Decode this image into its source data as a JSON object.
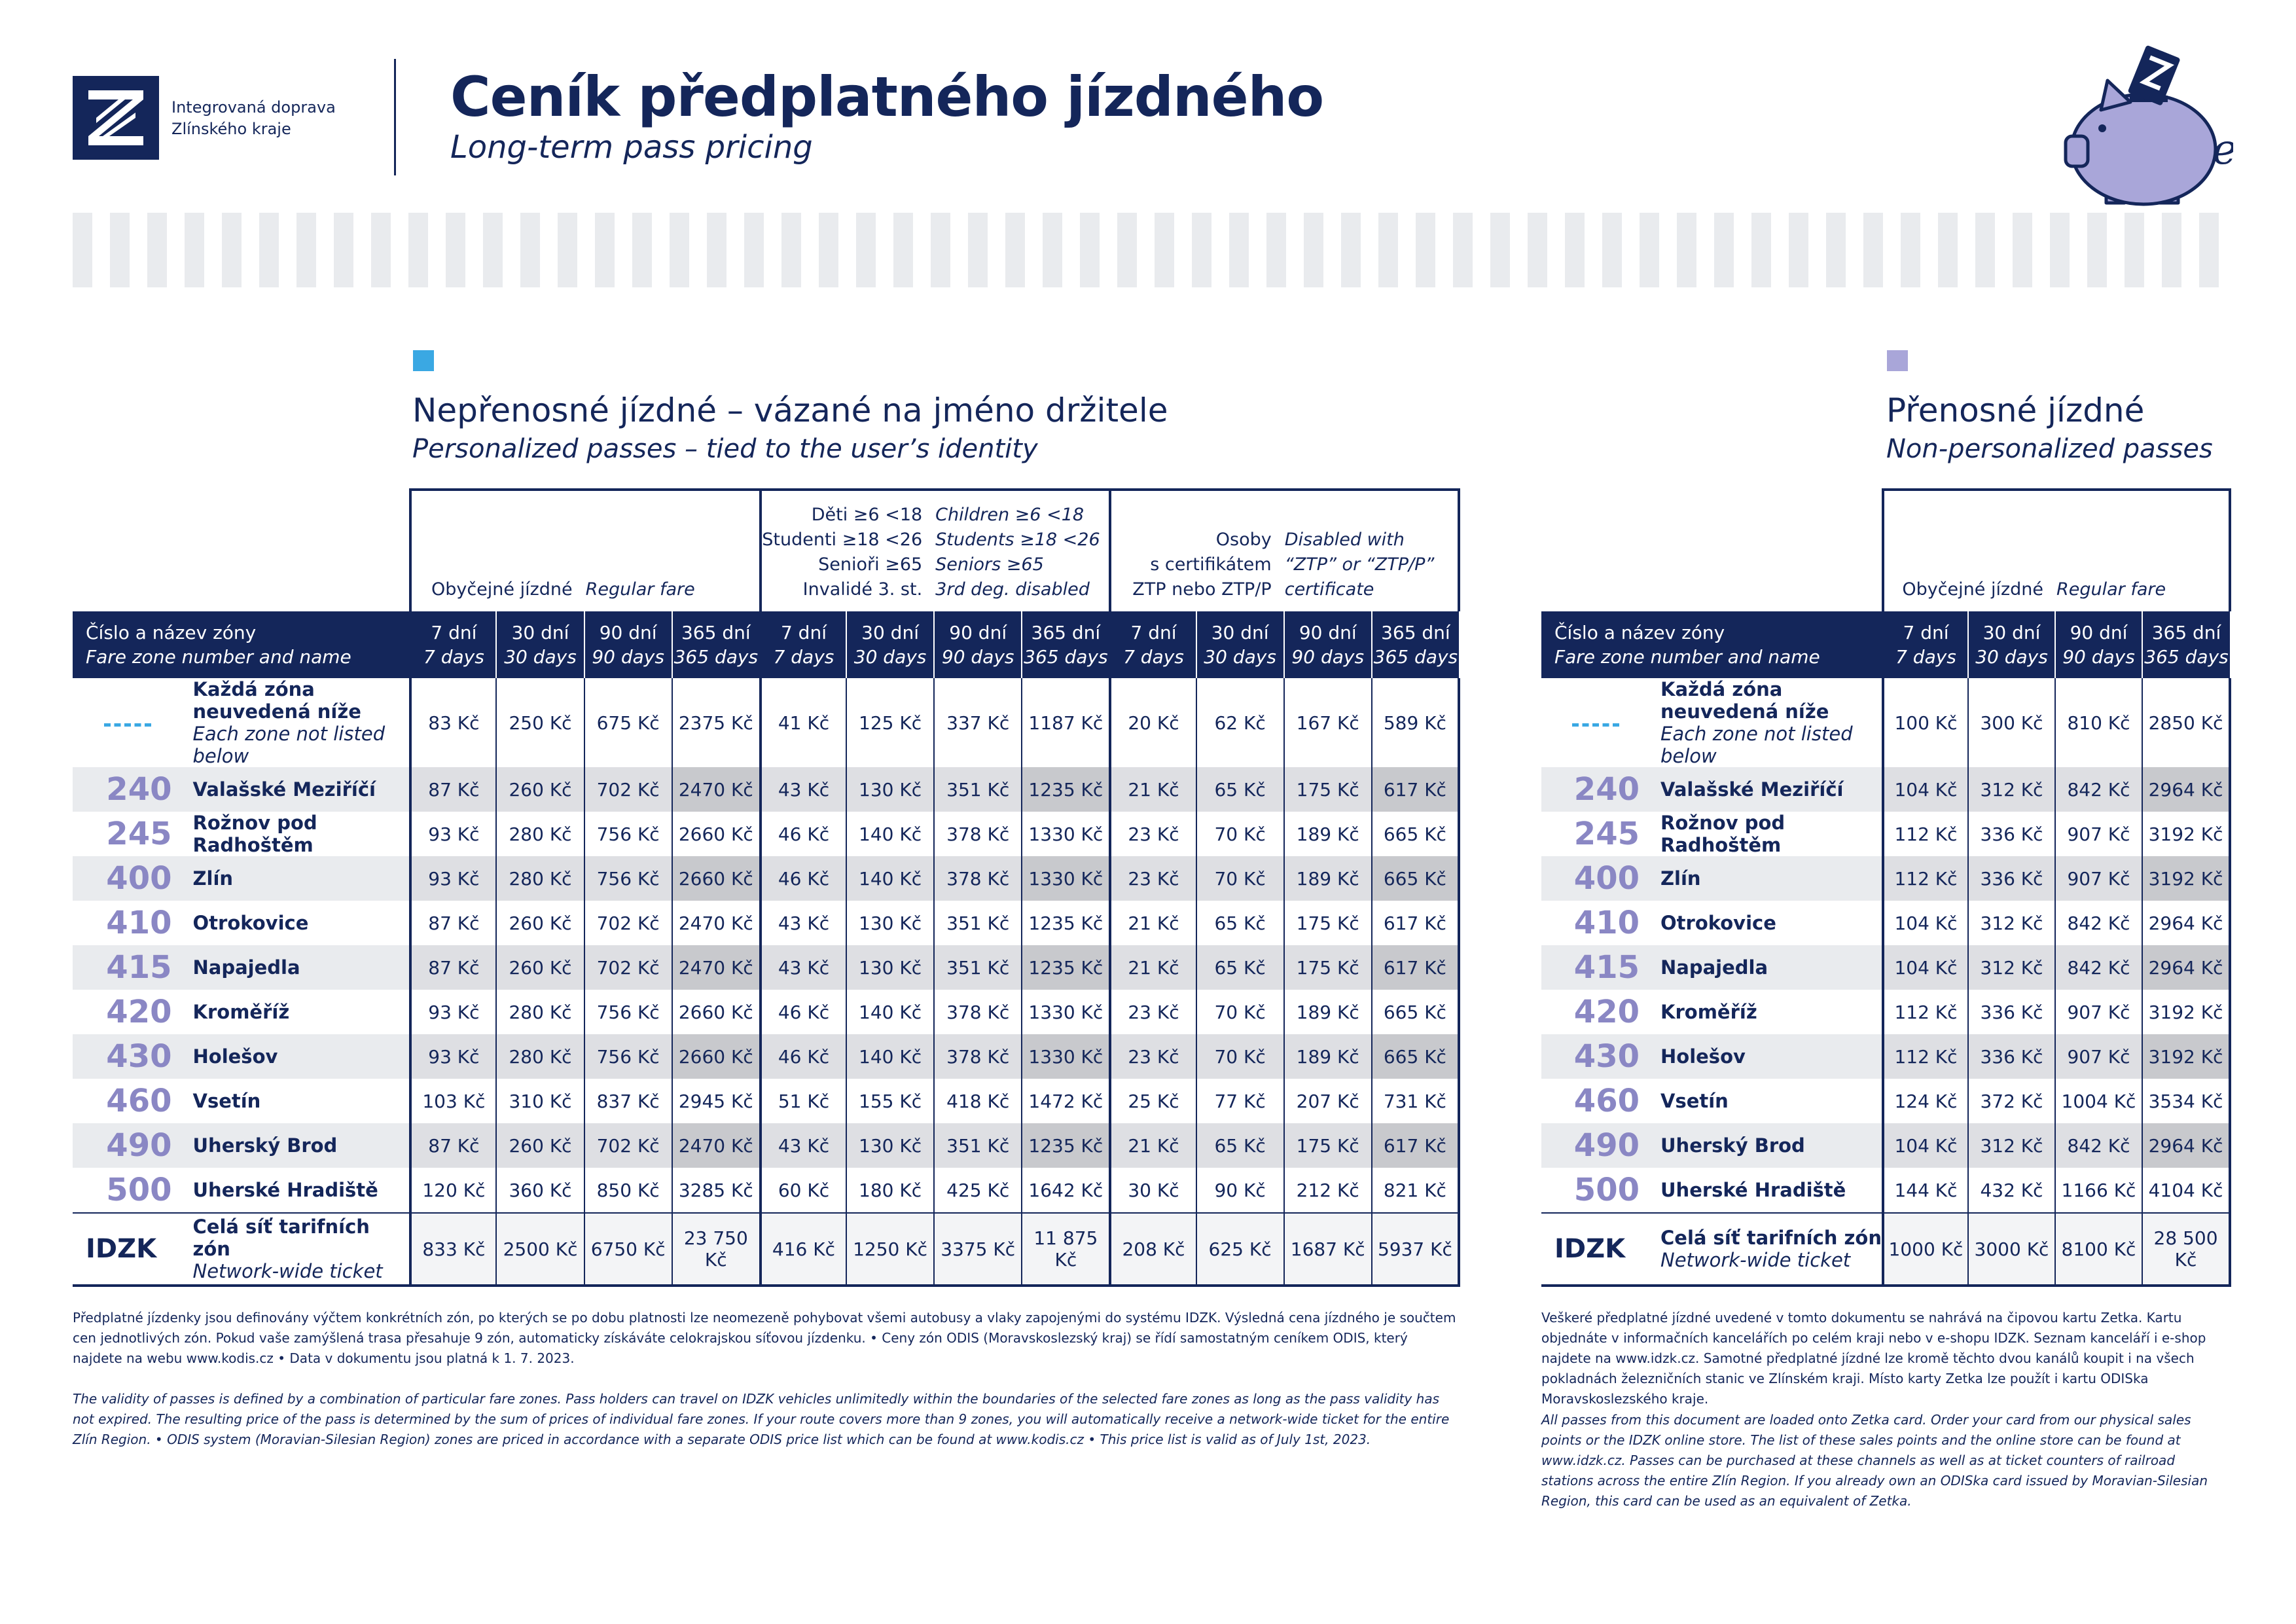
{
  "header": {
    "org_line1": "Integrovaná doprava",
    "org_line2": "Zlínského kraje",
    "title": "Ceník předplatného jízdného",
    "subtitle": "Long-term pass pricing",
    "logo_icon": "idzk-logo-icon",
    "mascot_icon": "piggy-bank-icon",
    "mascot_letter": "e"
  },
  "colors": {
    "navy": "#14265a",
    "blue_marker": "#3aa8e3",
    "violet_marker": "#a9a6d9",
    "zone_number": "#8a87c4"
  },
  "personal": {
    "title": "Nepřenosné jízdné – vázané na jméno držitele",
    "subtitle": "Personalized passes – tied to the user’s identity",
    "groups": [
      {
        "cz": [
          "Obyčejné jízdné"
        ],
        "en": [
          "Regular fare"
        ]
      },
      {
        "cz": [
          "Děti ≥6 <18",
          "Studenti ≥18 <26",
          "Senioři ≥65",
          "Invalidé 3. st."
        ],
        "en": [
          "Children ≥6 <18",
          "Students ≥18 <26",
          "Seniors ≥65",
          "3rd deg. disabled"
        ]
      },
      {
        "cz": [
          "Osoby",
          "s certifikátem",
          "ZTP nebo ZTP/P"
        ],
        "en": [
          "Disabled with",
          "“ZTP” or “ZTP/P”",
          "certificate"
        ]
      }
    ],
    "zone_header_cz": "Číslo a název zóny",
    "zone_header_en": "Fare zone number and name",
    "periods": [
      {
        "cz": "7 dní",
        "en": "7 days"
      },
      {
        "cz": "30 dní",
        "en": "30 days"
      },
      {
        "cz": "90 dní",
        "en": "90 days"
      },
      {
        "cz": "365 dní",
        "en": "365 days"
      }
    ],
    "rows": [
      {
        "num": "",
        "name": "Každá zóna neuvedená níže",
        "name_en": "Each zone not listed below",
        "prices": [
          "83 Kč",
          "250 Kč",
          "675 Kč",
          "2375 Kč",
          "41 Kč",
          "125 Kč",
          "337 Kč",
          "1187 Kč",
          "20 Kč",
          "62 Kč",
          "167 Kč",
          "589 Kč"
        ]
      },
      {
        "num": "240",
        "name": "Valašské Meziříčí",
        "prices": [
          "87 Kč",
          "260 Kč",
          "702 Kč",
          "2470 Kč",
          "43 Kč",
          "130 Kč",
          "351 Kč",
          "1235 Kč",
          "21 Kč",
          "65 Kč",
          "175 Kč",
          "617 Kč"
        ]
      },
      {
        "num": "245",
        "name": "Rožnov pod Radhoštěm",
        "prices": [
          "93 Kč",
          "280 Kč",
          "756 Kč",
          "2660 Kč",
          "46 Kč",
          "140 Kč",
          "378 Kč",
          "1330 Kč",
          "23 Kč",
          "70 Kč",
          "189 Kč",
          "665 Kč"
        ]
      },
      {
        "num": "400",
        "name": "Zlín",
        "prices": [
          "93 Kč",
          "280 Kč",
          "756 Kč",
          "2660 Kč",
          "46 Kč",
          "140 Kč",
          "378 Kč",
          "1330 Kč",
          "23 Kč",
          "70 Kč",
          "189 Kč",
          "665 Kč"
        ]
      },
      {
        "num": "410",
        "name": "Otrokovice",
        "prices": [
          "87 Kč",
          "260 Kč",
          "702 Kč",
          "2470 Kč",
          "43 Kč",
          "130 Kč",
          "351 Kč",
          "1235 Kč",
          "21 Kč",
          "65 Kč",
          "175 Kč",
          "617 Kč"
        ]
      },
      {
        "num": "415",
        "name": "Napajedla",
        "prices": [
          "87 Kč",
          "260 Kč",
          "702 Kč",
          "2470 Kč",
          "43 Kč",
          "130 Kč",
          "351 Kč",
          "1235 Kč",
          "21 Kč",
          "65 Kč",
          "175 Kč",
          "617 Kč"
        ]
      },
      {
        "num": "420",
        "name": "Kroměříž",
        "prices": [
          "93 Kč",
          "280 Kč",
          "756 Kč",
          "2660 Kč",
          "46 Kč",
          "140 Kč",
          "378 Kč",
          "1330 Kč",
          "23 Kč",
          "70 Kč",
          "189 Kč",
          "665 Kč"
        ]
      },
      {
        "num": "430",
        "name": "Holešov",
        "prices": [
          "93 Kč",
          "280 Kč",
          "756 Kč",
          "2660 Kč",
          "46 Kč",
          "140 Kč",
          "378 Kč",
          "1330 Kč",
          "23 Kč",
          "70 Kč",
          "189 Kč",
          "665 Kč"
        ]
      },
      {
        "num": "460",
        "name": "Vsetín",
        "prices": [
          "103 Kč",
          "310 Kč",
          "837 Kč",
          "2945 Kč",
          "51 Kč",
          "155 Kč",
          "418 Kč",
          "1472 Kč",
          "25 Kč",
          "77 Kč",
          "207 Kč",
          "731 Kč"
        ]
      },
      {
        "num": "490",
        "name": "Uherský Brod",
        "prices": [
          "87 Kč",
          "260 Kč",
          "702 Kč",
          "2470 Kč",
          "43 Kč",
          "130 Kč",
          "351 Kč",
          "1235 Kč",
          "21 Kč",
          "65 Kč",
          "175 Kč",
          "617 Kč"
        ]
      },
      {
        "num": "500",
        "name": "Uherské Hradiště",
        "prices": [
          "120 Kč",
          "360 Kč",
          "850 Kč",
          "3285 Kč",
          "60 Kč",
          "180 Kč",
          "425 Kč",
          "1642 Kč",
          "30 Kč",
          "90 Kč",
          "212 Kč",
          "821 Kč"
        ]
      },
      {
        "num": "IDZK",
        "name": "Celá síť tarifních zón",
        "name_en": "Network-wide ticket",
        "prices": [
          "833 Kč",
          "2500 Kč",
          "6750 Kč",
          "23 750 Kč",
          "416 Kč",
          "1250 Kč",
          "3375 Kč",
          "11 875 Kč",
          "208 Kč",
          "625 Kč",
          "1687 Kč",
          "5937 Kč"
        ]
      }
    ],
    "note_cz": "Předplatné jízdenky jsou definovány výčtem konkrétních zón, po kterých se po dobu platnosti lze neomezeně pohybovat všemi autobusy a vlaky zapojenými do systému IDZK. Výsledná cena jízdného je součtem cen jednotlivých zón. Pokud vaše zamýšlená trasa přesahuje 9 zón, automaticky získáváte celokrajskou síťovou jízdenku. • Ceny zón ODIS (Moravskoslezský kraj) se řídí samostatným ceníkem ODIS, který najdete na webu www.kodis.cz • Data v dokumentu jsou platná k 1. 7. 2023.",
    "note_en": "The validity of passes is defined by a combination of particular fare zones. Pass holders can travel on IDZK vehicles unlimitedly within the boundaries of the selected fare zones as long as the pass validity has not expired. The resulting price of the pass is determined by the sum of prices of individual fare zones. If your route covers more than 9 zones, you will automatically receive a network-wide ticket for the entire Zlín Region. • ODIS system (Moravian-Silesian Region) zones are priced in accordance with a separate ODIS price list which can be found at www.kodis.cz • This price list is valid as of July 1st, 2023."
  },
  "transferable": {
    "title": "Přenosné jízdné",
    "subtitle": "Non-personalized passes",
    "group_cz": "Obyčejné jízdné",
    "group_en": "Regular fare",
    "zone_header_cz": "Číslo a název zóny",
    "zone_header_en": "Fare zone number and name",
    "rows": [
      {
        "num": "",
        "name": "Každá zóna neuvedená níže",
        "name_en": "Each zone not listed below",
        "prices": [
          "100 Kč",
          "300 Kč",
          "810 Kč",
          "2850 Kč"
        ]
      },
      {
        "num": "240",
        "name": "Valašské Meziříčí",
        "prices": [
          "104 Kč",
          "312 Kč",
          "842 Kč",
          "2964 Kč"
        ]
      },
      {
        "num": "245",
        "name": "Rožnov pod Radhoštěm",
        "prices": [
          "112 Kč",
          "336 Kč",
          "907 Kč",
          "3192 Kč"
        ]
      },
      {
        "num": "400",
        "name": "Zlín",
        "prices": [
          "112 Kč",
          "336 Kč",
          "907 Kč",
          "3192 Kč"
        ]
      },
      {
        "num": "410",
        "name": "Otrokovice",
        "prices": [
          "104 Kč",
          "312 Kč",
          "842 Kč",
          "2964 Kč"
        ]
      },
      {
        "num": "415",
        "name": "Napajedla",
        "prices": [
          "104 Kč",
          "312 Kč",
          "842 Kč",
          "2964 Kč"
        ]
      },
      {
        "num": "420",
        "name": "Kroměříž",
        "prices": [
          "112 Kč",
          "336 Kč",
          "907 Kč",
          "3192 Kč"
        ]
      },
      {
        "num": "430",
        "name": "Holešov",
        "prices": [
          "112 Kč",
          "336 Kč",
          "907 Kč",
          "3192 Kč"
        ]
      },
      {
        "num": "460",
        "name": "Vsetín",
        "prices": [
          "124 Kč",
          "372 Kč",
          "1004 Kč",
          "3534 Kč"
        ]
      },
      {
        "num": "490",
        "name": "Uherský Brod",
        "prices": [
          "104 Kč",
          "312 Kč",
          "842 Kč",
          "2964 Kč"
        ]
      },
      {
        "num": "500",
        "name": "Uherské Hradiště",
        "prices": [
          "144 Kč",
          "432 Kč",
          "1166 Kč",
          "4104 Kč"
        ]
      },
      {
        "num": "IDZK",
        "name": "Celá síť tarifních zón",
        "name_en": "Network-wide ticket",
        "prices": [
          "1000 Kč",
          "3000 Kč",
          "8100 Kč",
          "28 500 Kč"
        ]
      }
    ],
    "note_cz": "Veškeré předplatné jízdné uvedené v tomto dokumentu se nahrává na čipovou kartu Zetka. Kartu objednáte v informačních kancelářích po celém kraji nebo v e-shopu IDZK. Seznam kanceláří i e-shop najdete na www.idzk.cz. Samotné předplatné jízdné lze kromě těchto dvou kanálů koupit i na všech pokladnách železničních stanic ve Zlínském kraji. Místo karty Zetka lze použít i kartu ODISka Moravskoslezského kraje.",
    "note_en": "All passes from this document are loaded onto Zetka card. Order your card from our physical sales points or the IDZK online store. The list of these sales points and the online store can be found at www.idzk.cz. Passes can be purchased at these channels as well as at ticket counters of railroad stations across the entire Zlín Region. If you already own an ODISka card issued by Moravian-Silesian Region, this card can be used as an equivalent of Zetka."
  }
}
